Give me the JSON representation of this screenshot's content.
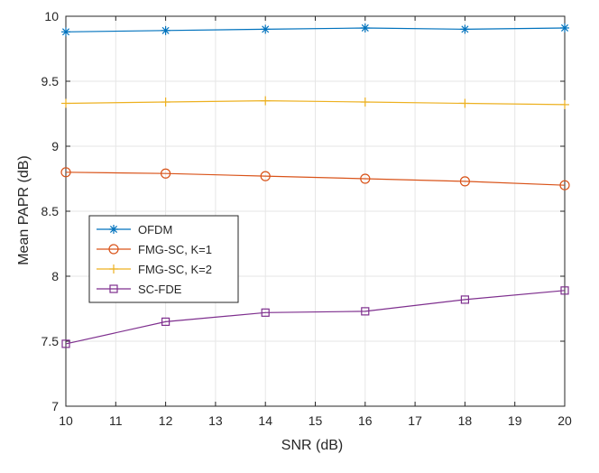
{
  "chart_data": {
    "type": "line",
    "title": "",
    "xlabel": "SNR (dB)",
    "ylabel": "Mean PAPR (dB)",
    "xlim": [
      10,
      20
    ],
    "ylim": [
      7,
      10
    ],
    "grid": true,
    "x_ticks": [
      "10",
      "11",
      "12",
      "13",
      "14",
      "15",
      "16",
      "17",
      "18",
      "19",
      "20"
    ],
    "y_ticks": [
      "7",
      "7.5",
      "8",
      "8.5",
      "9",
      "9.5",
      "10"
    ],
    "x": [
      10,
      12,
      14,
      16,
      18,
      20
    ],
    "legend_position": "lower-left",
    "series": [
      {
        "name": "OFDM",
        "color": "#0072BD",
        "marker": "asterisk",
        "values": [
          9.88,
          9.89,
          9.9,
          9.91,
          9.9,
          9.91
        ]
      },
      {
        "name": "FMG-SC, K=1",
        "color": "#D95319",
        "marker": "circle",
        "values": [
          8.8,
          8.79,
          8.77,
          8.75,
          8.73,
          8.7
        ]
      },
      {
        "name": "FMG-SC, K=2",
        "color": "#EDB120",
        "marker": "plus",
        "values": [
          9.33,
          9.34,
          9.35,
          9.34,
          9.33,
          9.32
        ]
      },
      {
        "name": "SC-FDE",
        "color": "#7E2F8E",
        "marker": "square",
        "values": [
          7.48,
          7.65,
          7.72,
          7.73,
          7.82,
          7.89
        ]
      }
    ]
  }
}
